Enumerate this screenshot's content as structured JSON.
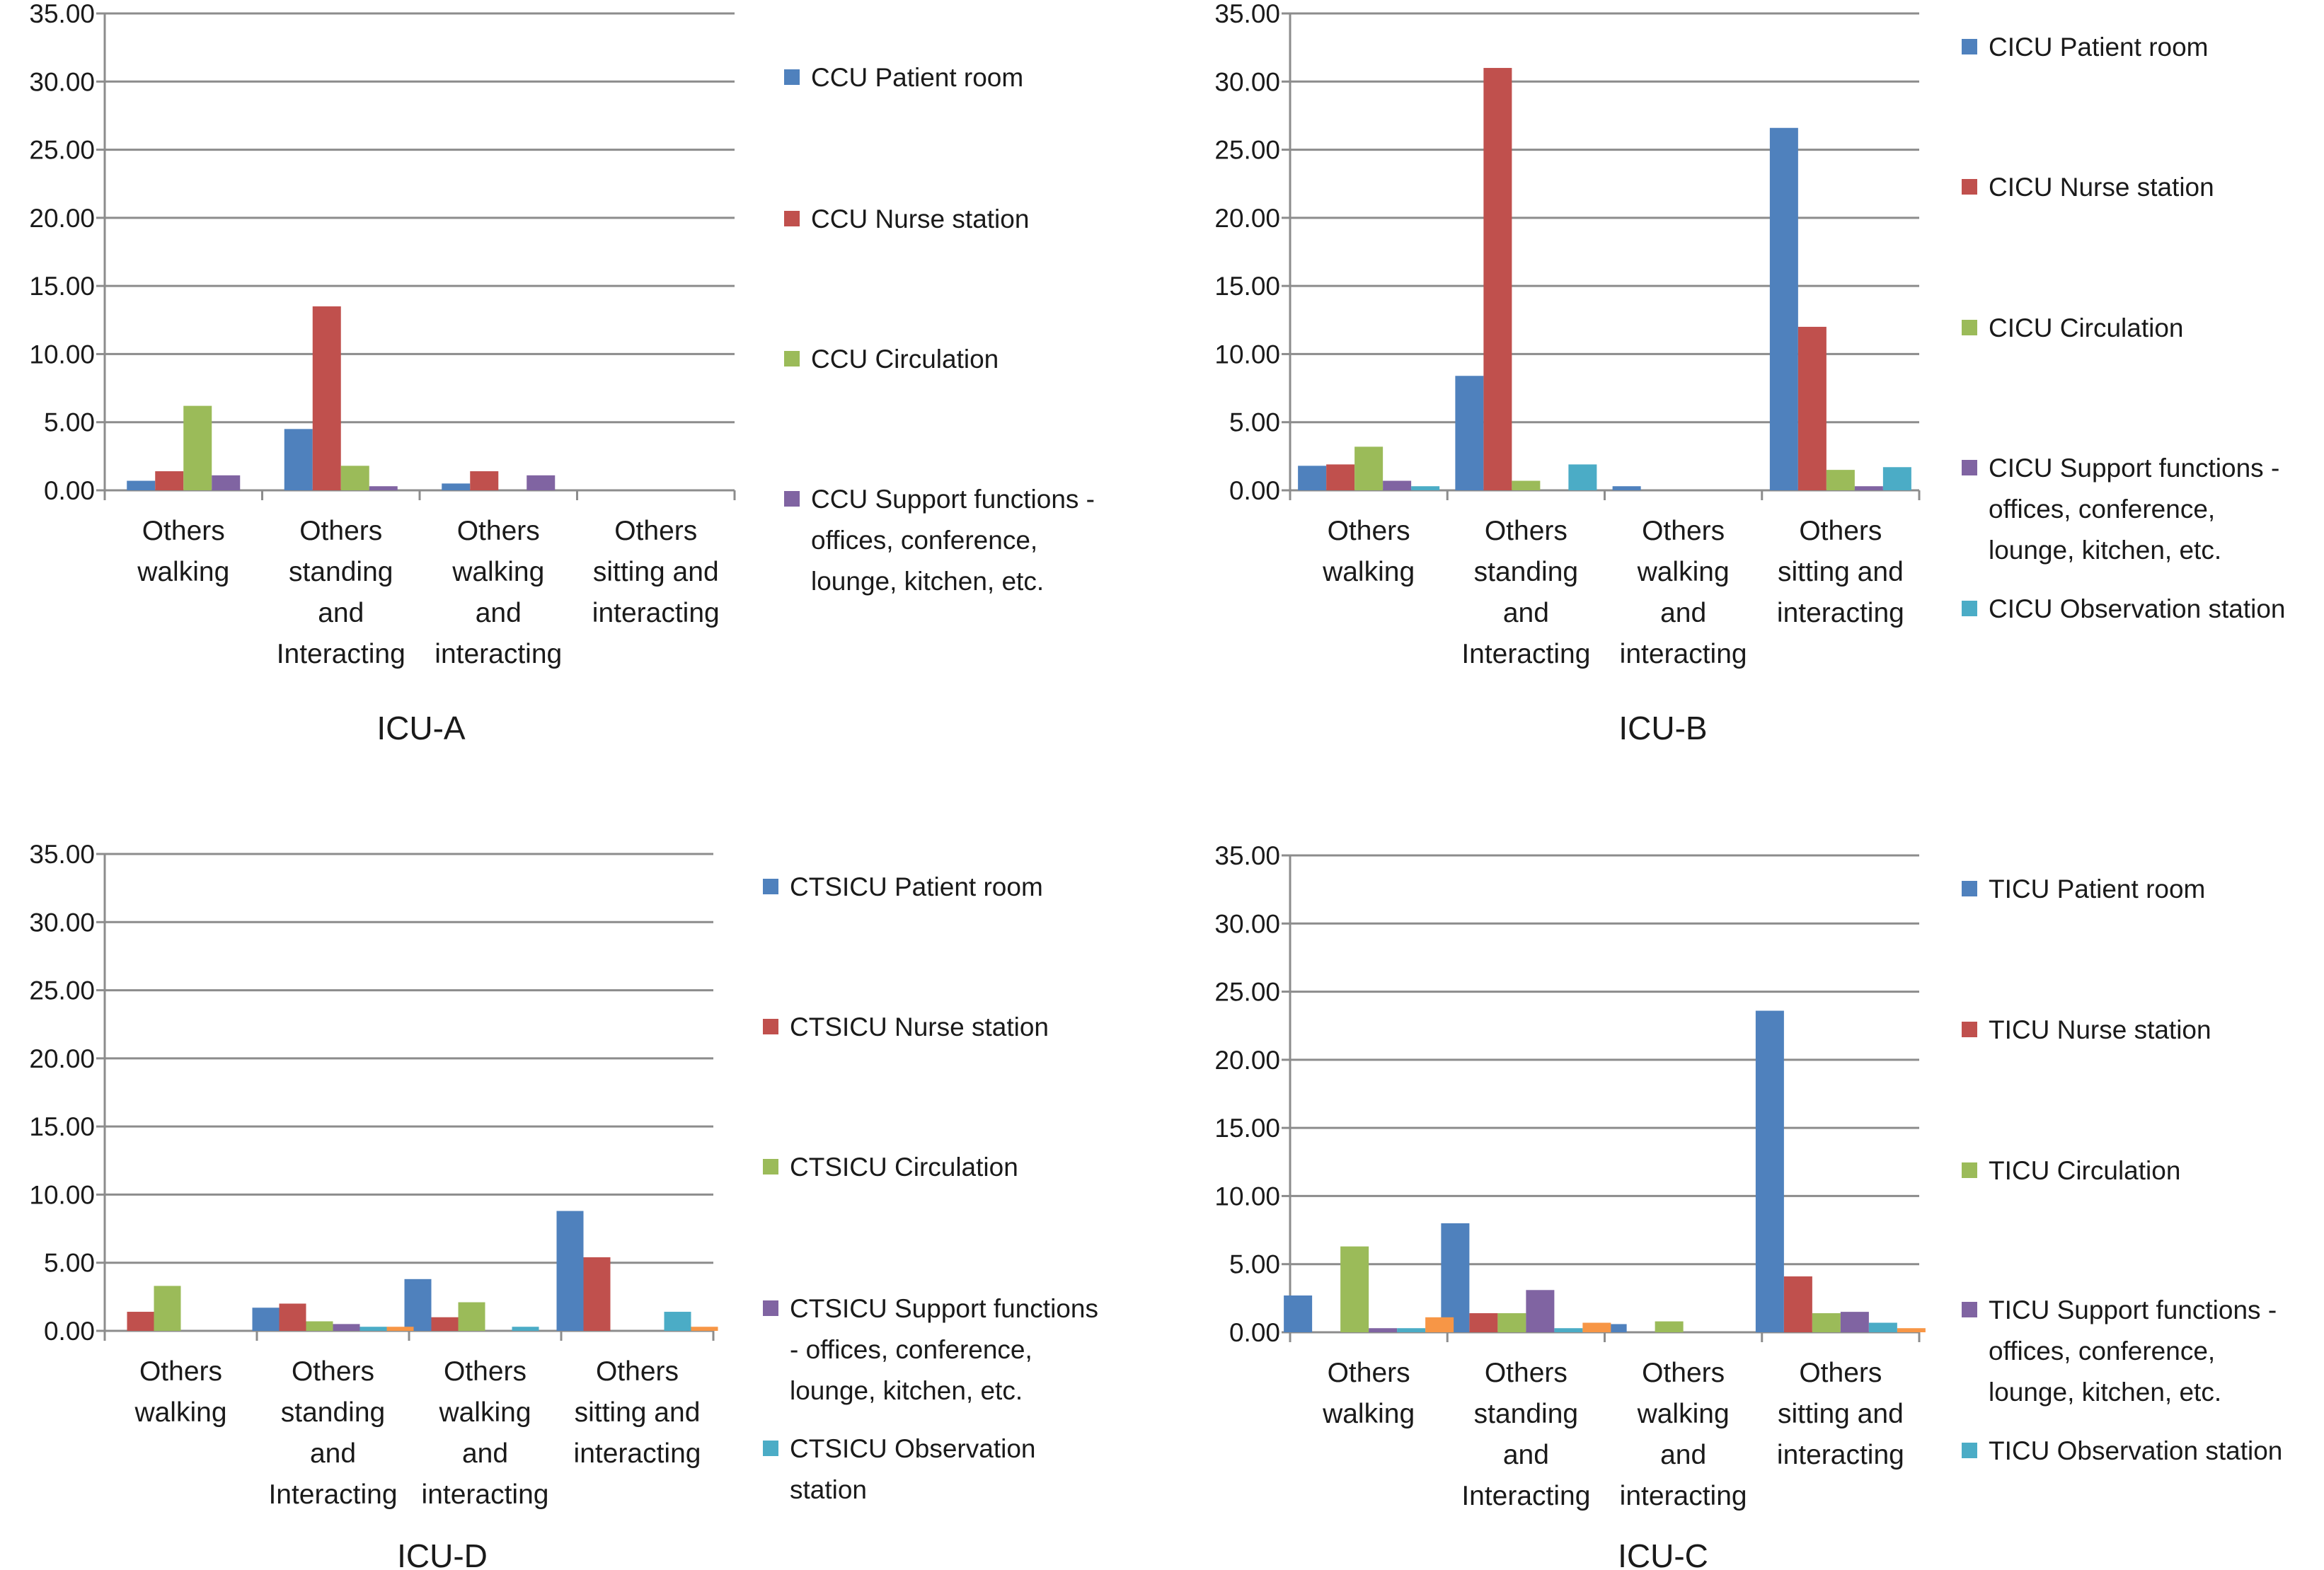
{
  "colors": {
    "patient_room": "#4f81bd",
    "nurse_station": "#c0504d",
    "circulation": "#9bbb59",
    "support": "#8064a2",
    "observation": "#4bacc6",
    "extra": "#f79646",
    "gridline": "#8c8c8c"
  },
  "chart_data": [
    {
      "type": "bar",
      "title": "ICU-A",
      "categories": [
        [
          "Others",
          "walking"
        ],
        [
          "Others",
          "standing",
          "and",
          "Interacting"
        ],
        [
          "Others",
          "walking",
          "and",
          "interacting"
        ],
        [
          "Others",
          "sitting and",
          "interacting"
        ]
      ],
      "ylim": [
        0,
        35
      ],
      "yticks": [
        "0.00",
        "5.00",
        "10.00",
        "15.00",
        "20.00",
        "25.00",
        "30.00",
        "35.00"
      ],
      "grid": true,
      "legend_position": "right",
      "series": [
        {
          "name": [
            "CCU Patient room"
          ],
          "color": "patient_room",
          "values": [
            0.7,
            4.5,
            0.5,
            0
          ]
        },
        {
          "name": [
            "CCU Nurse station"
          ],
          "color": "nurse_station",
          "values": [
            1.4,
            13.5,
            1.4,
            0
          ]
        },
        {
          "name": [
            "CCU Circulation"
          ],
          "color": "circulation",
          "values": [
            6.2,
            1.8,
            0,
            0
          ]
        },
        {
          "name": [
            "CCU Support functions -",
            "offices, conference,",
            "lounge, kitchen, etc."
          ],
          "color": "support",
          "values": [
            1.1,
            0.3,
            1.1,
            0
          ]
        }
      ]
    },
    {
      "type": "bar",
      "title": "ICU-B",
      "categories": [
        [
          "Others",
          "walking"
        ],
        [
          "Others",
          "standing",
          "and",
          "Interacting"
        ],
        [
          "Others",
          "walking",
          "and",
          "interacting"
        ],
        [
          "Others",
          "sitting and",
          "interacting"
        ]
      ],
      "ylim": [
        0,
        35
      ],
      "yticks": [
        "0.00",
        "5.00",
        "10.00",
        "15.00",
        "20.00",
        "25.00",
        "30.00",
        "35.00"
      ],
      "grid": true,
      "legend_position": "right",
      "series": [
        {
          "name": [
            "CICU Patient room"
          ],
          "color": "patient_room",
          "values": [
            1.8,
            8.4,
            0.3,
            26.6
          ]
        },
        {
          "name": [
            "CICU Nurse station"
          ],
          "color": "nurse_station",
          "values": [
            1.9,
            31.0,
            0,
            12.0
          ]
        },
        {
          "name": [
            "CICU Circulation"
          ],
          "color": "circulation",
          "values": [
            3.2,
            0.7,
            0,
            1.5
          ]
        },
        {
          "name": [
            "CICU Support functions -",
            "offices, conference,",
            "lounge, kitchen, etc."
          ],
          "color": "support",
          "values": [
            0.7,
            0,
            0,
            0.3
          ]
        },
        {
          "name": [
            "CICU Observation station"
          ],
          "color": "observation",
          "values": [
            0.3,
            1.9,
            0,
            1.7
          ]
        }
      ]
    },
    {
      "type": "bar",
      "title": "ICU-D",
      "categories": [
        [
          "Others",
          "walking"
        ],
        [
          "Others",
          "standing",
          "and",
          "Interacting"
        ],
        [
          "Others",
          "walking",
          "and",
          "interacting"
        ],
        [
          "Others",
          "sitting and",
          "interacting"
        ]
      ],
      "ylim": [
        0,
        35
      ],
      "yticks": [
        "0.00",
        "5.00",
        "10.00",
        "15.00",
        "20.00",
        "25.00",
        "30.00",
        "35.00"
      ],
      "grid": true,
      "legend_position": "right",
      "series": [
        {
          "name": [
            "CTSICU Patient room"
          ],
          "color": "patient_room",
          "values": [
            0,
            1.7,
            3.8,
            8.8
          ]
        },
        {
          "name": [
            "CTSICU Nurse station"
          ],
          "color": "nurse_station",
          "values": [
            1.4,
            2.0,
            1.0,
            5.4
          ]
        },
        {
          "name": [
            "CTSICU Circulation"
          ],
          "color": "circulation",
          "values": [
            3.3,
            0.7,
            2.1,
            0
          ]
        },
        {
          "name": [
            "CTSICU Support functions",
            "- offices, conference,",
            "lounge, kitchen, etc."
          ],
          "color": "support",
          "values": [
            0,
            0.5,
            0,
            0
          ]
        },
        {
          "name": [
            "CTSICU Observation",
            "station"
          ],
          "color": "observation",
          "values": [
            0,
            0.3,
            0.3,
            1.4
          ]
        },
        {
          "color": "extra",
          "values": [
            0,
            0.3,
            0,
            0.3
          ]
        }
      ]
    },
    {
      "type": "bar",
      "title": "ICU-C",
      "categories": [
        [
          "Others",
          "walking"
        ],
        [
          "Others",
          "standing",
          "and",
          "Interacting"
        ],
        [
          "Others",
          "walking",
          "and",
          "interacting"
        ],
        [
          "Others",
          "sitting and",
          "interacting"
        ]
      ],
      "ylim": [
        0,
        35
      ],
      "yticks": [
        "0.00",
        "5.00",
        "10.00",
        "15.00",
        "20.00",
        "25.00",
        "30.00",
        "35.00"
      ],
      "grid": true,
      "legend_position": "right",
      "series": [
        {
          "name": [
            "TICU Patient room"
          ],
          "color": "patient_room",
          "values": [
            2.7,
            8.0,
            0.6,
            23.6
          ]
        },
        {
          "name": [
            "TICU Nurse station"
          ],
          "color": "nurse_station",
          "values": [
            0,
            1.4,
            0,
            4.1
          ]
        },
        {
          "name": [
            "TICU Circulation"
          ],
          "color": "circulation",
          "values": [
            6.3,
            1.4,
            0.8,
            1.4
          ]
        },
        {
          "name": [
            "TICU Support functions -",
            "offices, conference,",
            "lounge, kitchen, etc."
          ],
          "color": "support",
          "values": [
            0.3,
            3.1,
            0,
            1.5
          ]
        },
        {
          "name": [
            "TICU Observation station"
          ],
          "color": "observation",
          "values": [
            0.3,
            0.3,
            0,
            0.7
          ]
        },
        {
          "color": "extra",
          "values": [
            1.1,
            0.7,
            0,
            0.3
          ]
        }
      ]
    }
  ]
}
